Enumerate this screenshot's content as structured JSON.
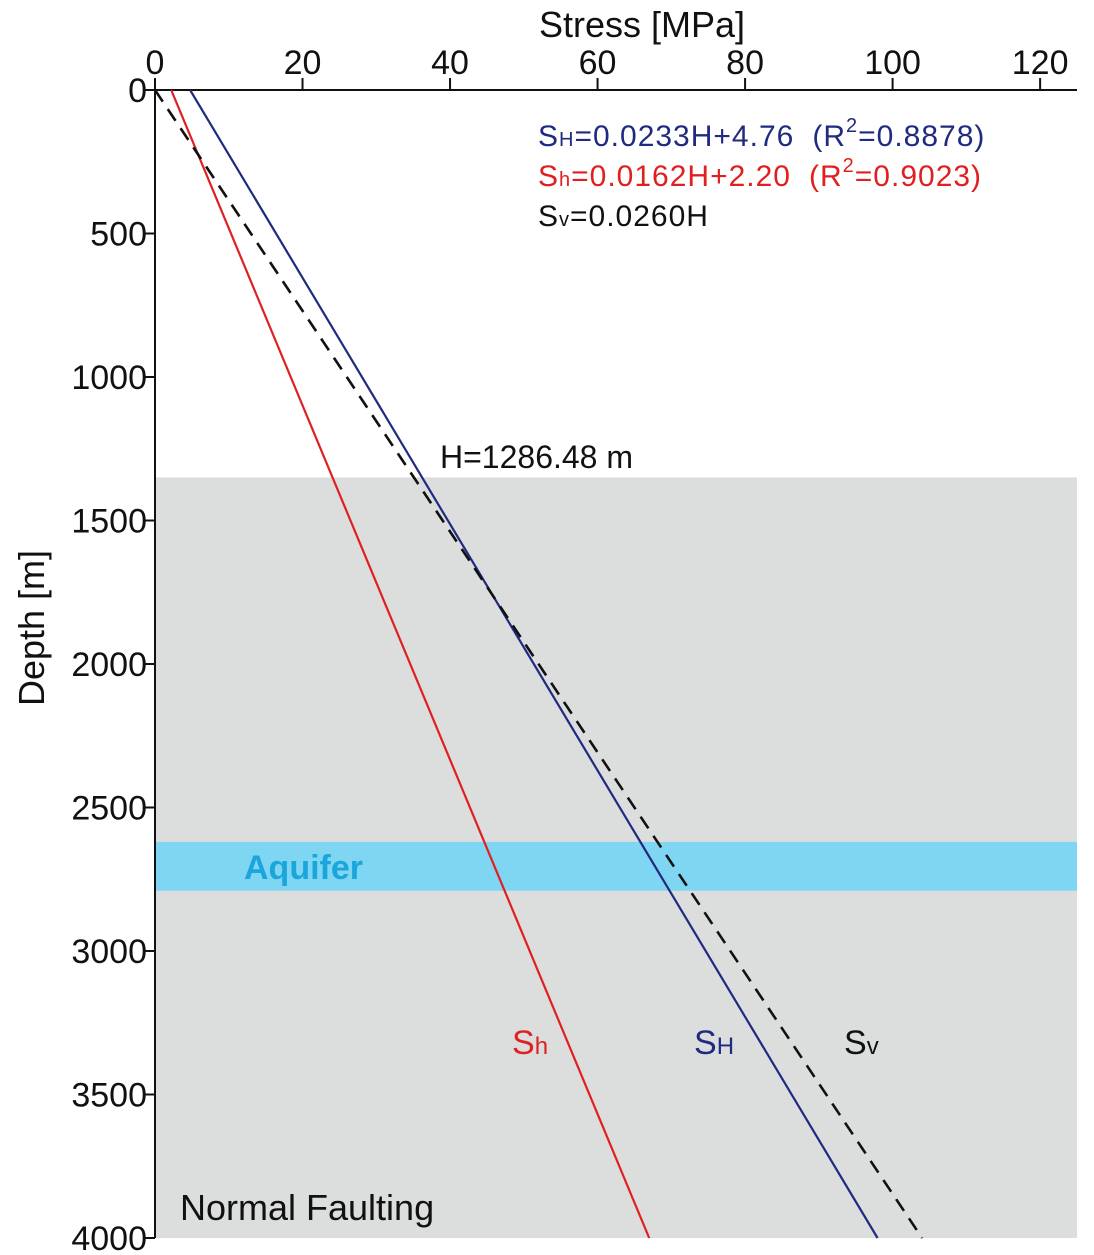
{
  "chart_data": {
    "type": "line",
    "title": "",
    "xlabel": "Stress [MPa]",
    "ylabel": "Depth [m]",
    "xlim": [
      0,
      125
    ],
    "ylim": [
      0,
      4000
    ],
    "y_inverted": true,
    "x_ticks": [
      0,
      20,
      40,
      60,
      80,
      100,
      120
    ],
    "y_ticks": [
      0,
      500,
      1000,
      1500,
      2000,
      2500,
      3000,
      3500,
      4000
    ],
    "grid": false,
    "series": [
      {
        "name": "SH",
        "label_main": "S",
        "label_sub": "H",
        "color": "#1f2a80",
        "dashed": false,
        "slope": 0.0233,
        "intercept": 4.76,
        "equation": "=0.0233H+4.76",
        "r2_label": "(R",
        "r2_value": "=0.8878)",
        "r2_sup": "2"
      },
      {
        "name": "Sh",
        "label_main": "S",
        "label_sub": "h",
        "color": "#e02020",
        "dashed": false,
        "slope": 0.0162,
        "intercept": 2.2,
        "equation": "=0.0162H+2.20",
        "r2_label": "(R",
        "r2_value": "=0.9023)",
        "r2_sup": "2"
      },
      {
        "name": "Sv",
        "label_main": "S",
        "label_sub": "v",
        "color": "#111111",
        "dashed": true,
        "slope": 0.026,
        "intercept": 0,
        "equation": "=0.0260H"
      }
    ],
    "regions": [
      {
        "name": "Normal Faulting",
        "label": "Normal Faulting",
        "from_depth": 1350,
        "to_depth": 4000,
        "color": "#dcdddd"
      },
      {
        "name": "Aquifer",
        "label": "Aquifer",
        "from_depth": 2620,
        "to_depth": 2790,
        "color": "#7fd6f2",
        "label_color": "#1aa6dc"
      }
    ],
    "annotations": [
      {
        "text": "H=1286.48 m",
        "x": 39,
        "y": 1290
      }
    ]
  }
}
